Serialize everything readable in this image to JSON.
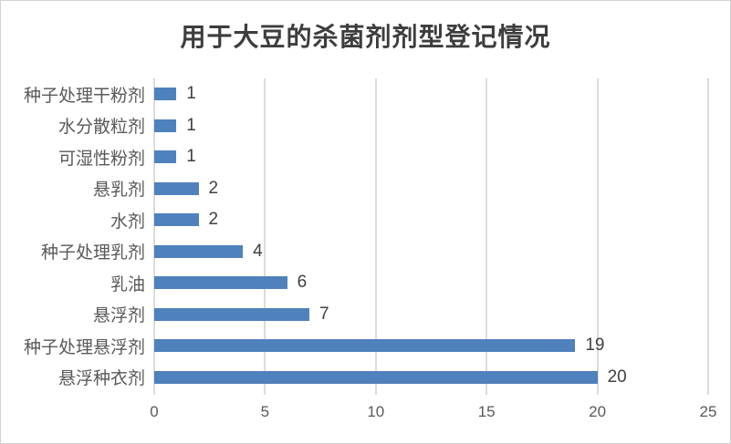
{
  "chart_data": {
    "type": "bar",
    "orientation": "horizontal",
    "title": "用于大豆的杀菌剂剂型登记情况",
    "categories": [
      "种子处理干粉剂",
      "水分散粒剂",
      "可湿性粉剂",
      "悬乳剂",
      "水剂",
      "种子处理乳剂",
      "乳油",
      "悬浮剂",
      "种子处理悬浮剂",
      "悬浮种衣剂"
    ],
    "values": [
      1,
      1,
      1,
      2,
      2,
      4,
      6,
      7,
      19,
      20
    ],
    "data_labels": [
      "1",
      "1",
      "1",
      "2",
      "2",
      "4",
      "6",
      "7",
      "19",
      "20"
    ],
    "xlabel": "",
    "ylabel": "",
    "xlim": [
      0,
      25
    ],
    "xticks": [
      0,
      5,
      10,
      15,
      20,
      25
    ],
    "xtick_labels": [
      "0",
      "5",
      "10",
      "15",
      "20",
      "25"
    ],
    "grid": "vertical-only",
    "legend": "none",
    "bar_color": "#4f81bd",
    "gridline_color": "#dcdcdc",
    "title_color": "#3d3d3d",
    "axis_label_color": "#595959",
    "value_label_color": "#404040"
  }
}
